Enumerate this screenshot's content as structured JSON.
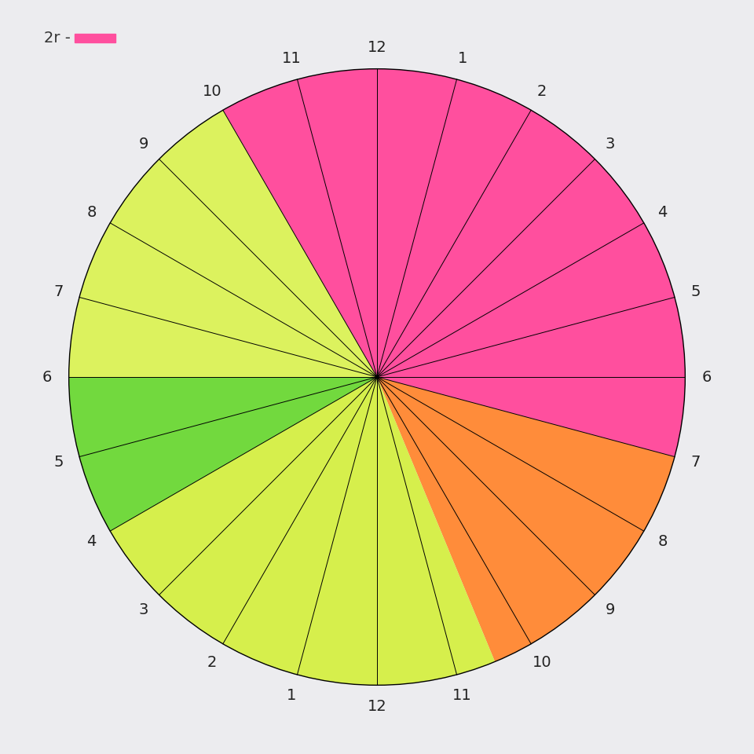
{
  "chart_data": {
    "type": "pie",
    "annotations": [
      "2r -"
    ],
    "start": 22,
    "values": [
      9,
      3.5,
      5.5,
      2,
      4
    ],
    "colors": [
      "#ff4f9e",
      "#ff8c3a",
      "#d6ef4c",
      "#72d93e",
      "#dcf25e"
    ],
    "hour_labels": [
      "12",
      "1",
      "2",
      "3",
      "4",
      "5",
      "6",
      "7",
      "8",
      "9",
      "10",
      "11",
      "12",
      "1",
      "2",
      "3",
      "4",
      "5",
      "6",
      "7",
      "8",
      "9",
      "10",
      "11"
    ]
  }
}
